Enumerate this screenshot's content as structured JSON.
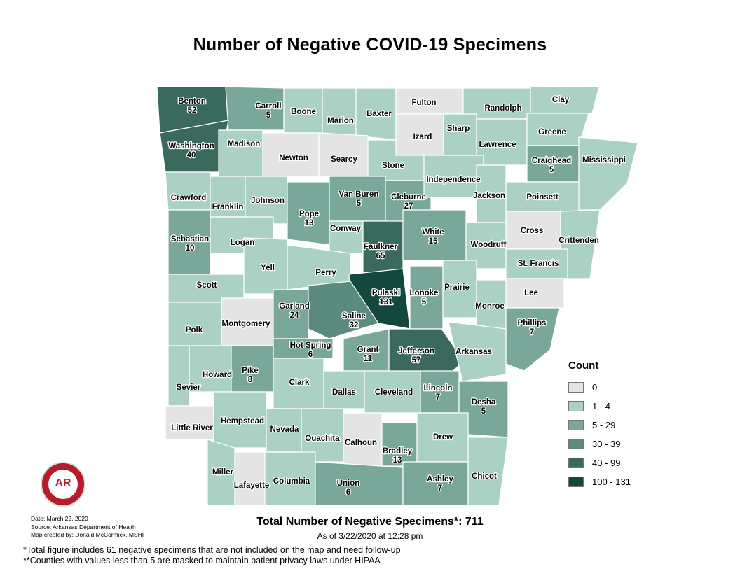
{
  "title": "Number of Negative COVID-19 Specimens",
  "legend": {
    "title": "Count",
    "items": [
      {
        "label": "0",
        "color": "#e4e4e4"
      },
      {
        "label": "1 - 4",
        "color": "#abd1c4"
      },
      {
        "label": "5 - 29",
        "color": "#79a89b"
      },
      {
        "label": "30 - 39",
        "color": "#5b8b7e"
      },
      {
        "label": "40 - 99",
        "color": "#3a6a5e"
      },
      {
        "label": "100 - 131",
        "color": "#14473d"
      }
    ]
  },
  "counties": [
    {
      "name": "Benton",
      "value": "52",
      "cls": 4
    },
    {
      "name": "Carroll",
      "value": "5",
      "cls": 2
    },
    {
      "name": "Boone",
      "value": "",
      "cls": 1
    },
    {
      "name": "Marion",
      "value": "",
      "cls": 1
    },
    {
      "name": "Baxter",
      "value": "",
      "cls": 1
    },
    {
      "name": "Fulton",
      "value": "",
      "cls": 0
    },
    {
      "name": "Randolph",
      "value": "",
      "cls": 1
    },
    {
      "name": "Clay",
      "value": "",
      "cls": 1
    },
    {
      "name": "Washington",
      "value": "40",
      "cls": 4
    },
    {
      "name": "Madison",
      "value": "",
      "cls": 1
    },
    {
      "name": "Newton",
      "value": "",
      "cls": 0
    },
    {
      "name": "Searcy",
      "value": "",
      "cls": 0
    },
    {
      "name": "Stone",
      "value": "",
      "cls": 1
    },
    {
      "name": "Izard",
      "value": "",
      "cls": 0
    },
    {
      "name": "Sharp",
      "value": "",
      "cls": 1
    },
    {
      "name": "Lawrence",
      "value": "",
      "cls": 1
    },
    {
      "name": "Greene",
      "value": "",
      "cls": 1
    },
    {
      "name": "Craighead",
      "value": "5",
      "cls": 2
    },
    {
      "name": "Mississippi",
      "value": "",
      "cls": 1
    },
    {
      "name": "Crawford",
      "value": "",
      "cls": 1
    },
    {
      "name": "Franklin",
      "value": "",
      "cls": 1
    },
    {
      "name": "Johnson",
      "value": "",
      "cls": 1
    },
    {
      "name": "Pope",
      "value": "13",
      "cls": 2
    },
    {
      "name": "Van Buren",
      "value": "5",
      "cls": 2
    },
    {
      "name": "Cleburne",
      "value": "27",
      "cls": 2
    },
    {
      "name": "Independence",
      "value": "",
      "cls": 1
    },
    {
      "name": "Jackson",
      "value": "",
      "cls": 1
    },
    {
      "name": "Poinsett",
      "value": "",
      "cls": 1
    },
    {
      "name": "Sebastian",
      "value": "10",
      "cls": 2
    },
    {
      "name": "Logan",
      "value": "",
      "cls": 1
    },
    {
      "name": "Conway",
      "value": "",
      "cls": 1
    },
    {
      "name": "Faulkner",
      "value": "65",
      "cls": 4
    },
    {
      "name": "White",
      "value": "15",
      "cls": 2
    },
    {
      "name": "Woodruff",
      "value": "",
      "cls": 1
    },
    {
      "name": "Cross",
      "value": "",
      "cls": 0
    },
    {
      "name": "Crittenden",
      "value": "",
      "cls": 1
    },
    {
      "name": "Scott",
      "value": "",
      "cls": 1
    },
    {
      "name": "Yell",
      "value": "",
      "cls": 1
    },
    {
      "name": "Perry",
      "value": "",
      "cls": 1
    },
    {
      "name": "Pulaski",
      "value": "131",
      "cls": 5
    },
    {
      "name": "Lonoke",
      "value": "5",
      "cls": 2
    },
    {
      "name": "Prairie",
      "value": "",
      "cls": 1
    },
    {
      "name": "St. Francis",
      "value": "",
      "cls": 1
    },
    {
      "name": "Lee",
      "value": "",
      "cls": 0
    },
    {
      "name": "Polk",
      "value": "",
      "cls": 1
    },
    {
      "name": "Montgomery",
      "value": "",
      "cls": 0
    },
    {
      "name": "Garland",
      "value": "24",
      "cls": 2
    },
    {
      "name": "Saline",
      "value": "32",
      "cls": 3
    },
    {
      "name": "Monroe",
      "value": "",
      "cls": 1
    },
    {
      "name": "Phillips",
      "value": "7",
      "cls": 2
    },
    {
      "name": "Hot Spring",
      "value": "6",
      "cls": 2
    },
    {
      "name": "Grant",
      "value": "11",
      "cls": 2
    },
    {
      "name": "Jefferson",
      "value": "57",
      "cls": 4
    },
    {
      "name": "Arkansas",
      "value": "",
      "cls": 1
    },
    {
      "name": "Howard",
      "value": "",
      "cls": 1
    },
    {
      "name": "Pike",
      "value": "8",
      "cls": 2
    },
    {
      "name": "Clark",
      "value": "",
      "cls": 1
    },
    {
      "name": "Dallas",
      "value": "",
      "cls": 1
    },
    {
      "name": "Cleveland",
      "value": "",
      "cls": 1
    },
    {
      "name": "Lincoln",
      "value": "7",
      "cls": 2
    },
    {
      "name": "Desha",
      "value": "5",
      "cls": 2
    },
    {
      "name": "Sevier",
      "value": "",
      "cls": 1
    },
    {
      "name": "Little River",
      "value": "",
      "cls": 0
    },
    {
      "name": "Hempstead",
      "value": "",
      "cls": 1
    },
    {
      "name": "Nevada",
      "value": "",
      "cls": 1
    },
    {
      "name": "Ouachita",
      "value": "",
      "cls": 1
    },
    {
      "name": "Calhoun",
      "value": "",
      "cls": 0
    },
    {
      "name": "Bradley",
      "value": "13",
      "cls": 2
    },
    {
      "name": "Drew",
      "value": "",
      "cls": 1
    },
    {
      "name": "Miller",
      "value": "",
      "cls": 1
    },
    {
      "name": "Lafayette",
      "value": "",
      "cls": 0
    },
    {
      "name": "Columbia",
      "value": "",
      "cls": 1
    },
    {
      "name": "Union",
      "value": "6",
      "cls": 2
    },
    {
      "name": "Ashley",
      "value": "7",
      "cls": 2
    },
    {
      "name": "Chicot",
      "value": "",
      "cls": 1
    }
  ],
  "logo_text": "AR",
  "credits": {
    "date": "Date: March 22, 2020",
    "source": "Source: Arkansas Department of Health",
    "creator": "Map created by: Donald McCormick, MSHI"
  },
  "total": "Total Number of Negative Specimens*: 711",
  "asof": "As of 3/22/2020 at 12:28 pm",
  "footnote1": "*Total figure includes 61 negative specimens that are not included on the map and need follow-up",
  "footnote2": "**Counties with values less than 5 are masked to maintain patient privacy laws under HIPAA"
}
